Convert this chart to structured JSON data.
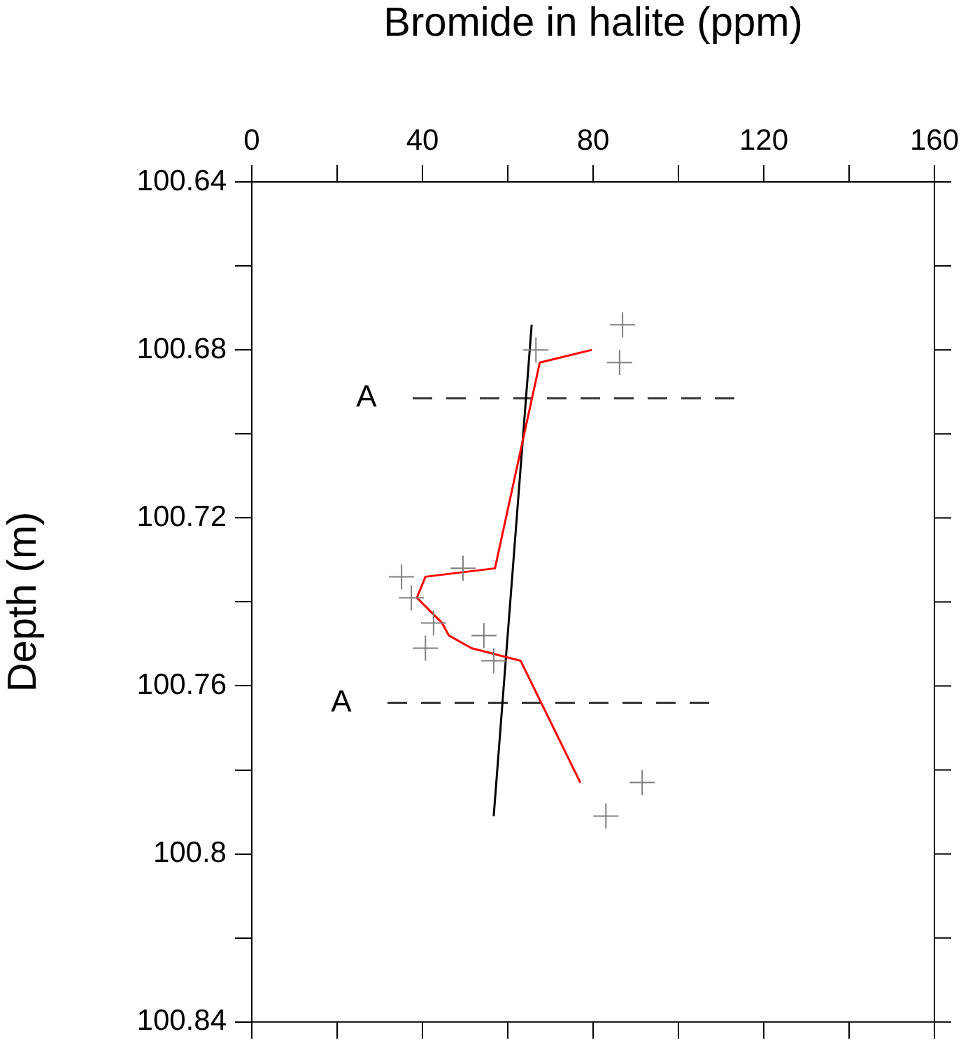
{
  "chart_data": {
    "type": "scatter",
    "xlabel": "Bromide in halite (ppm)",
    "ylabel": "Depth (m)",
    "xlim": [
      0,
      160
    ],
    "xticks": [
      0,
      {
        "value": 20,
        "label": null
      },
      40,
      {
        "value": 60,
        "label": null
      },
      80,
      {
        "value": 100,
        "label": null
      },
      120,
      {
        "value": 140,
        "label": null
      },
      160
    ],
    "ylim": [
      100.84,
      100.64
    ],
    "yticks": [
      100.64,
      {
        "value": 100.66,
        "label": null
      },
      100.68,
      {
        "value": 100.7,
        "label": null
      },
      100.72,
      {
        "value": 100.74,
        "label": null
      },
      100.76,
      {
        "value": 100.78,
        "label": null
      },
      100.8,
      {
        "value": 100.82,
        "label": null
      },
      100.84
    ],
    "grid": false,
    "legend": false,
    "series": [
      {
        "type": "scatter",
        "marker": "cross",
        "color": "#808080",
        "x": [
          86.9,
          66.6,
          86.2,
          35.1,
          49.5,
          37.4,
          42.6,
          54.4,
          40.7,
          56.7,
          91.5,
          83.0
        ],
        "values": [
          100.674,
          100.68,
          100.683,
          100.734,
          100.732,
          100.739,
          100.745,
          100.748,
          100.751,
          100.754,
          100.783,
          100.791
        ]
      },
      {
        "type": "line",
        "marker": "none",
        "color": "#ff0000",
        "x": [
          79.7,
          67.5,
          57.0,
          40.7,
          38.7,
          44.6,
          46.2,
          51.5,
          63.0,
          77.0
        ],
        "values": [
          100.68,
          100.683,
          100.732,
          100.734,
          100.739,
          100.745,
          100.748,
          100.751,
          100.754,
          100.783
        ]
      },
      {
        "type": "line",
        "marker": "none",
        "color": "#000000",
        "x": [
          65.6,
          56.7
        ],
        "values": [
          100.674,
          100.791
        ]
      },
      {
        "type": "line",
        "name": "A",
        "marker": "none",
        "line_style": "dashed",
        "color": "#333333",
        "x": [
          37.7,
          114
        ],
        "values": [
          100.6915,
          100.6915
        ]
      },
      {
        "type": "line",
        "name": "A",
        "marker": "none",
        "line_style": "dashed",
        "color": "#333333",
        "x": [
          31.8,
          108
        ],
        "values": [
          100.764,
          100.764
        ]
      }
    ]
  }
}
